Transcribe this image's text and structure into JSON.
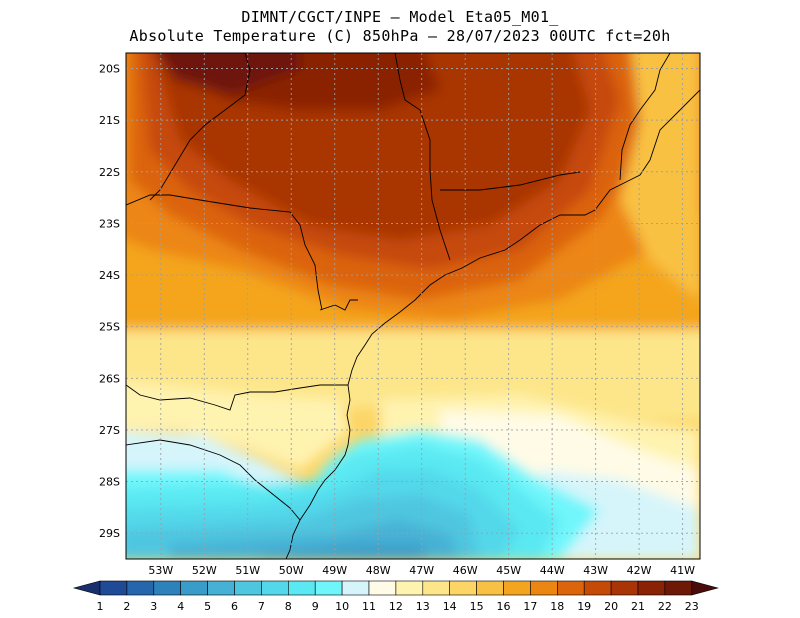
{
  "title": {
    "line1": "DIMNT/CGCT/INPE –  Model Eta05_M01_",
    "line2": "Absolute Temperature (C) 850hPa –  28/07/2023 00UTC fct=20h"
  },
  "map": {
    "lat_labels": [
      "20S",
      "21S",
      "22S",
      "23S",
      "24S",
      "25S",
      "26S",
      "27S",
      "28S",
      "29S"
    ],
    "lon_labels": [
      "53W",
      "52W",
      "51W",
      "50W",
      "49W",
      "48W",
      "47W",
      "46W",
      "45W",
      "44W",
      "43W",
      "42W",
      "41W"
    ],
    "lat_range": [
      -29.5,
      -19.7
    ],
    "lon_range": [
      -53.8,
      -40.6
    ]
  },
  "colorbar": {
    "labels": [
      "1",
      "2",
      "3",
      "4",
      "5",
      "6",
      "7",
      "8",
      "9",
      "10",
      "11",
      "12",
      "13",
      "14",
      "15",
      "16",
      "17",
      "18",
      "19",
      "20",
      "21",
      "22",
      "23"
    ],
    "colors": [
      "#1a2f6e",
      "#1f4a96",
      "#2566ad",
      "#2d82bb",
      "#3a9cc8",
      "#46b1d4",
      "#4fc6e0",
      "#52d8ea",
      "#5ae8f2",
      "#6ff6fb",
      "#d6f5fb",
      "#fffbe6",
      "#fff3b0",
      "#fde68a",
      "#fcd566",
      "#f9c143",
      "#f4a51f",
      "#ec8612",
      "#dc640c",
      "#c64a07",
      "#a93406",
      "#8a2205",
      "#6e1807",
      "#4a0b0b"
    ]
  }
}
